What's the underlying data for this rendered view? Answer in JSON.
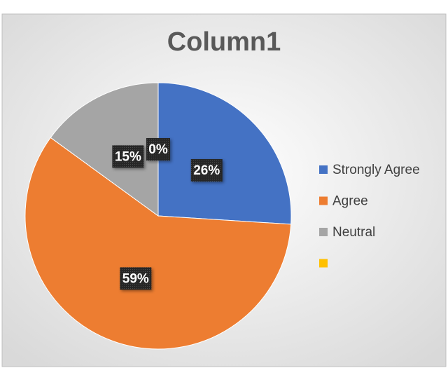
{
  "chart_data": {
    "type": "pie",
    "title": "Column1",
    "categories": [
      "Strongly Agree",
      "Agree",
      "Neutral",
      null
    ],
    "values": [
      26,
      59,
      15,
      0
    ],
    "value_labels": [
      "26%",
      "59%",
      "15%",
      "0%"
    ],
    "colors": [
      "#4472c4",
      "#ed7d31",
      "#a5a5a5",
      "#ffc000"
    ],
    "legend": "right"
  }
}
